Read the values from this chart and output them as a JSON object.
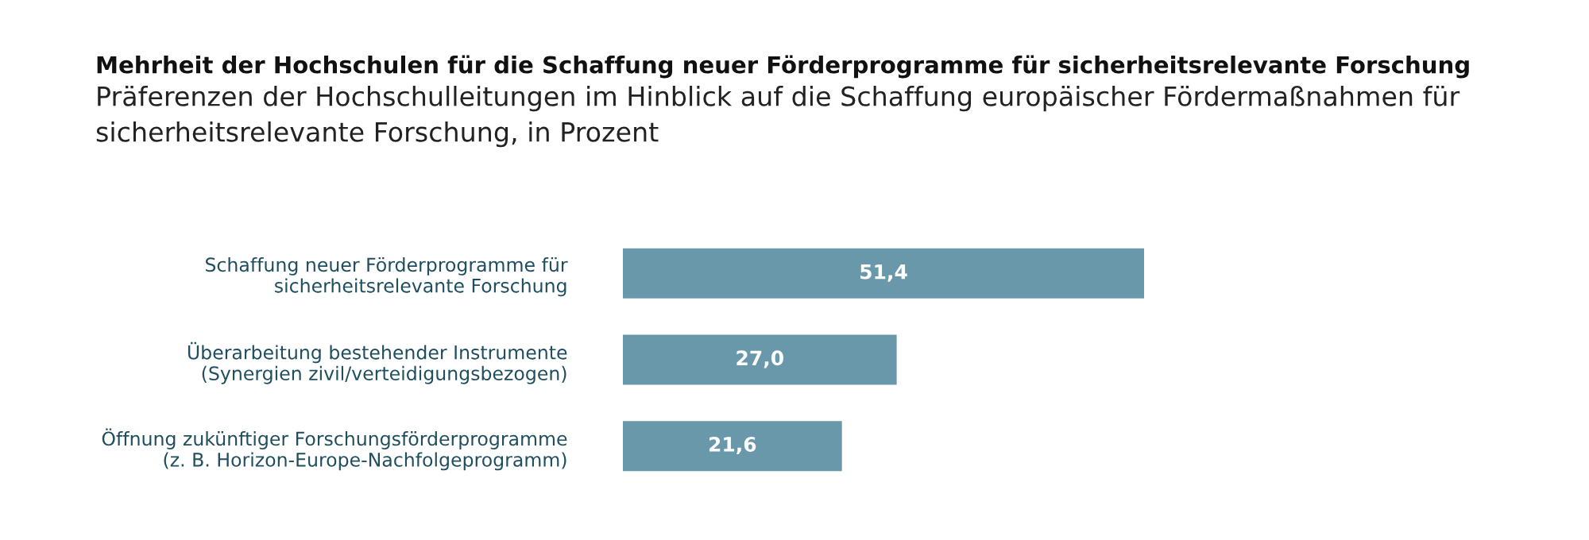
{
  "chart_data": {
    "type": "bar",
    "orientation": "horizontal",
    "title": "Mehrheit der Hochschulen für die Schaffung neuer Förderprogramme für sicherheitsrelevante Forschung",
    "subtitle": "Präferenzen der Hochschulleitungen im Hinblick auf die Schaffung europäischer Fördermaßnahmen für\nsicherheitsrelevante Forschung, in Prozent",
    "categories": [
      "Schaffung neuer Förderprogramme für\nsicherheitsrelevante Forschung",
      "Überarbeitung bestehender Instrumente\n(Synergien zivil/verteidigungsbezogen)",
      "Öffnung zukünftiger Forschungsförderprogramme\n(z. B. Horizon-Europe-Nachfolgeprogramm)"
    ],
    "values": [
      51.4,
      27.0,
      21.6
    ],
    "value_labels": [
      "51,4",
      "27,0",
      "21,6"
    ],
    "color": "#6a98ab",
    "legend": false,
    "grid": false
  }
}
